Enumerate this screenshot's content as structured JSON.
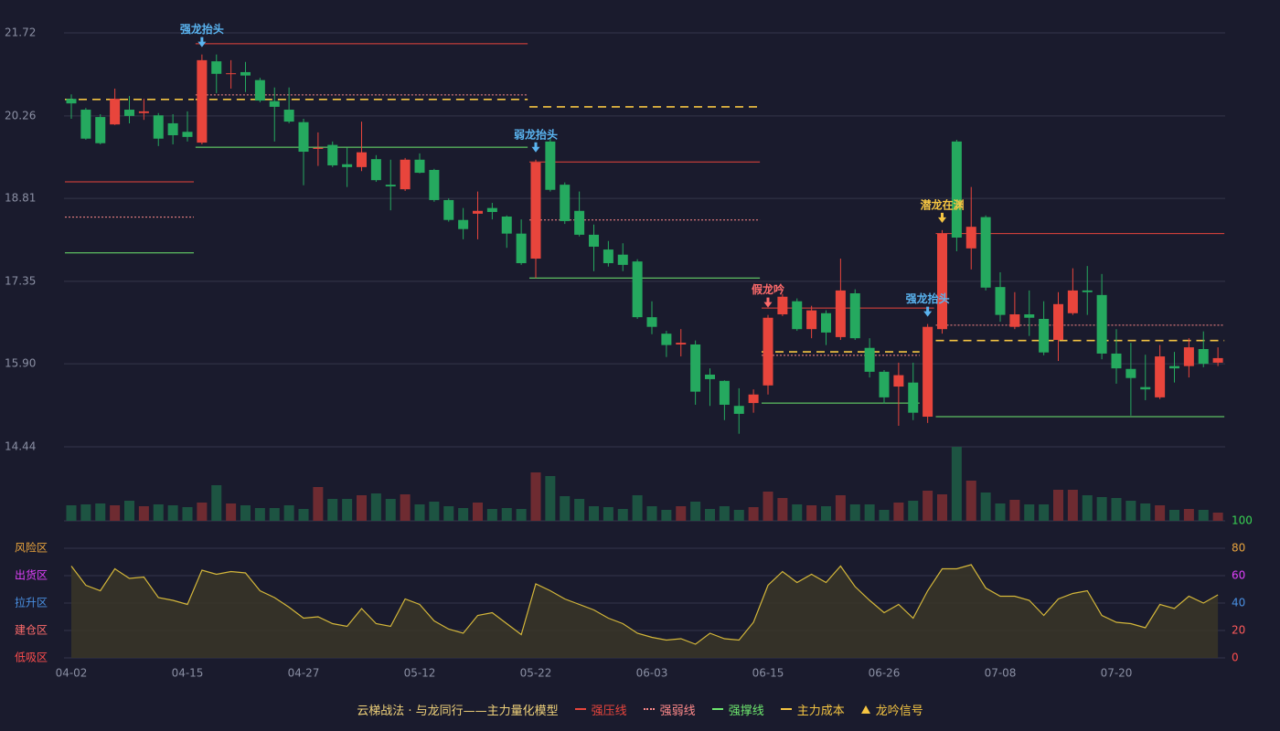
{
  "chart_data": {
    "type": "candlestick",
    "categories": [
      "04-02",
      null,
      null,
      null,
      null,
      null,
      null,
      null,
      "04-15",
      null,
      null,
      null,
      null,
      null,
      null,
      null,
      "04-27",
      null,
      null,
      null,
      null,
      null,
      null,
      null,
      "05-12",
      null,
      null,
      null,
      null,
      null,
      null,
      null,
      "05-22",
      null,
      null,
      null,
      null,
      null,
      null,
      null,
      "06-03",
      null,
      null,
      null,
      null,
      null,
      null,
      null,
      "06-15",
      null,
      null,
      null,
      null,
      null,
      null,
      null,
      "06-26",
      null,
      null,
      null,
      null,
      null,
      null,
      null,
      "07-08",
      null,
      null,
      null,
      null,
      null,
      null,
      null,
      "07-20",
      null,
      null,
      null,
      null,
      null,
      null,
      null
    ],
    "ohlc": [
      [
        20.56,
        20.64,
        20.21,
        20.48
      ],
      [
        20.37,
        20.4,
        19.84,
        19.86
      ],
      [
        20.24,
        20.29,
        19.76,
        19.78
      ],
      [
        20.11,
        20.74,
        20.1,
        20.56
      ],
      [
        20.37,
        20.61,
        20.13,
        20.26
      ],
      [
        20.31,
        20.56,
        20.19,
        20.34
      ],
      [
        20.27,
        20.31,
        19.73,
        19.86
      ],
      [
        20.13,
        20.29,
        19.76,
        19.92
      ],
      [
        19.98,
        20.34,
        19.81,
        19.89
      ],
      [
        19.79,
        21.34,
        19.76,
        21.24
      ],
      [
        21.22,
        21.34,
        20.66,
        21.0
      ],
      [
        21.0,
        21.24,
        20.74,
        21.01
      ],
      [
        21.03,
        21.21,
        20.68,
        20.97
      ],
      [
        20.89,
        20.93,
        20.5,
        20.53
      ],
      [
        20.52,
        20.76,
        19.81,
        20.42
      ],
      [
        20.37,
        20.76,
        20.13,
        20.16
      ],
      [
        20.15,
        20.21,
        19.04,
        19.63
      ],
      [
        19.68,
        19.97,
        19.38,
        19.7
      ],
      [
        19.75,
        19.81,
        19.36,
        19.39
      ],
      [
        19.41,
        19.7,
        19.01,
        19.36
      ],
      [
        19.36,
        20.16,
        19.29,
        19.62
      ],
      [
        19.5,
        19.57,
        19.1,
        19.13
      ],
      [
        19.05,
        19.49,
        18.6,
        19.02
      ],
      [
        18.97,
        19.52,
        18.94,
        19.49
      ],
      [
        19.49,
        19.6,
        19.25,
        19.26
      ],
      [
        19.31,
        19.33,
        18.75,
        18.78
      ],
      [
        18.78,
        18.81,
        18.4,
        18.43
      ],
      [
        18.43,
        18.64,
        18.09,
        18.27
      ],
      [
        18.54,
        18.93,
        18.09,
        18.59
      ],
      [
        18.64,
        18.73,
        18.44,
        18.57
      ],
      [
        18.49,
        18.51,
        17.94,
        18.19
      ],
      [
        18.19,
        18.44,
        17.64,
        17.67
      ],
      [
        17.75,
        19.49,
        17.41,
        19.44
      ],
      [
        19.81,
        19.89,
        18.93,
        18.96
      ],
      [
        19.05,
        19.09,
        18.36,
        18.41
      ],
      [
        18.59,
        18.93,
        18.14,
        18.17
      ],
      [
        18.17,
        18.35,
        17.53,
        17.96
      ],
      [
        17.91,
        18.06,
        17.61,
        17.67
      ],
      [
        17.82,
        18.02,
        17.53,
        17.64
      ],
      [
        17.7,
        17.74,
        16.69,
        16.72
      ],
      [
        16.72,
        17.0,
        16.42,
        16.55
      ],
      [
        16.43,
        16.48,
        16.02,
        16.23
      ],
      [
        16.24,
        16.51,
        16.03,
        16.27
      ],
      [
        16.24,
        16.31,
        15.18,
        15.41
      ],
      [
        15.71,
        15.82,
        15.16,
        15.63
      ],
      [
        15.6,
        15.61,
        14.91,
        15.18
      ],
      [
        15.16,
        15.47,
        14.67,
        15.02
      ],
      [
        15.21,
        15.45,
        15.04,
        15.36
      ],
      [
        15.52,
        16.76,
        15.36,
        16.71
      ],
      [
        16.77,
        17.13,
        16.74,
        17.08
      ],
      [
        17.0,
        17.05,
        16.48,
        16.51
      ],
      [
        16.51,
        16.92,
        16.35,
        16.84
      ],
      [
        16.79,
        16.84,
        16.23,
        16.45
      ],
      [
        16.37,
        17.75,
        16.32,
        17.19
      ],
      [
        17.14,
        17.21,
        16.32,
        16.35
      ],
      [
        16.18,
        16.35,
        15.66,
        15.76
      ],
      [
        15.76,
        15.79,
        15.2,
        15.31
      ],
      [
        15.5,
        15.92,
        14.81,
        15.7
      ],
      [
        15.57,
        15.92,
        14.91,
        15.04
      ],
      [
        14.97,
        16.6,
        14.86,
        16.55
      ],
      [
        16.51,
        18.25,
        16.43,
        18.19
      ],
      [
        19.81,
        19.84,
        17.88,
        18.12
      ],
      [
        17.93,
        19.01,
        17.56,
        18.31
      ],
      [
        18.48,
        18.51,
        17.19,
        17.24
      ],
      [
        17.25,
        17.51,
        16.64,
        16.76
      ],
      [
        16.55,
        17.16,
        16.51,
        16.77
      ],
      [
        16.77,
        17.19,
        16.39,
        16.71
      ],
      [
        16.69,
        17.0,
        16.05,
        16.1
      ],
      [
        16.32,
        17.16,
        15.95,
        16.95
      ],
      [
        16.79,
        17.58,
        16.76,
        17.19
      ],
      [
        17.19,
        17.62,
        16.76,
        17.16
      ],
      [
        17.11,
        17.48,
        15.98,
        16.08
      ],
      [
        16.08,
        16.51,
        15.55,
        15.82
      ],
      [
        15.81,
        16.27,
        14.99,
        15.65
      ],
      [
        15.49,
        16.06,
        15.26,
        15.45
      ],
      [
        15.31,
        16.23,
        15.28,
        16.03
      ],
      [
        15.86,
        16.11,
        15.57,
        15.82
      ],
      [
        15.86,
        16.35,
        15.66,
        16.19
      ],
      [
        16.16,
        16.47,
        15.84,
        15.9
      ],
      [
        15.92,
        16.19,
        15.86,
        16.0
      ]
    ],
    "up_color": "#e8453c",
    "down_color": "#25a95f",
    "ylim": [
      14.44,
      21.72
    ],
    "yticks": [
      14.44,
      {
        "value": 15.9,
        "label": "15.90"
      },
      17.35,
      18.81,
      20.26,
      21.72
    ],
    "grid": true,
    "levels": [
      {
        "name": "强压线",
        "color": "#e8453c",
        "style": "solid"
      },
      {
        "name": "强弱线",
        "color": "#ff8a8a",
        "style": "dotted"
      },
      {
        "name": "强撑线",
        "color": "#6ee86e",
        "style": "solid"
      },
      {
        "name": "主力成本",
        "color": "#f5c542",
        "style": "dashed"
      }
    ],
    "segments": [
      {
        "kind": 0,
        "from": 0,
        "to": 8,
        "value": 19.1
      },
      {
        "kind": 1,
        "from": 0,
        "to": 8,
        "value": 18.48
      },
      {
        "kind": 2,
        "from": 0,
        "to": 8,
        "value": 17.85
      },
      {
        "kind": 3,
        "from": 0,
        "to": 8,
        "value": 20.55
      },
      {
        "kind": 0,
        "from": 9,
        "to": 31,
        "value": 21.53
      },
      {
        "kind": 1,
        "from": 9,
        "to": 31,
        "value": 20.63
      },
      {
        "kind": 3,
        "from": 9,
        "to": 31,
        "value": 20.55
      },
      {
        "kind": 2,
        "from": 9,
        "to": 31,
        "value": 19.71
      },
      {
        "kind": 0,
        "from": 32,
        "to": 47,
        "value": 19.45
      },
      {
        "kind": 1,
        "from": 32,
        "to": 47,
        "value": 18.43
      },
      {
        "kind": 2,
        "from": 32,
        "to": 47,
        "value": 17.41
      },
      {
        "kind": 3,
        "from": 32,
        "to": 47,
        "value": 20.42
      },
      {
        "kind": 0,
        "from": 48,
        "to": 59,
        "value": 16.88
      },
      {
        "kind": 1,
        "from": 48,
        "to": 58,
        "value": 16.05
      },
      {
        "kind": 3,
        "from": 48,
        "to": 58,
        "value": 16.11
      },
      {
        "kind": 2,
        "from": 48,
        "to": 58,
        "value": 15.21
      },
      {
        "kind": 0,
        "from": 60,
        "to": 79,
        "value": 18.19
      },
      {
        "kind": 1,
        "from": 60,
        "to": 79,
        "value": 16.58
      },
      {
        "kind": 3,
        "from": 60,
        "to": 79,
        "value": 16.31
      },
      {
        "kind": 2,
        "from": 60,
        "to": 79,
        "value": 14.97
      }
    ],
    "signals": [
      {
        "label": "强龙抬头",
        "index": 9,
        "color": "#5ab4f0"
      },
      {
        "label": "弱龙抬头",
        "index": 32,
        "color": "#5ab4f0"
      },
      {
        "label": "假龙吟",
        "index": 48,
        "color": "#ff6b6b"
      },
      {
        "label": "强龙抬头",
        "index": 59,
        "color": "#5ab4f0"
      },
      {
        "label": "潜龙在渊",
        "index": 60,
        "color": "#f5c542"
      }
    ],
    "volume": [
      17,
      18,
      19,
      17,
      22,
      16,
      18,
      17,
      15,
      20,
      39,
      19,
      17,
      14,
      14,
      17,
      13,
      37,
      24,
      24,
      28,
      30,
      24,
      29,
      18,
      21,
      16,
      14,
      20,
      13,
      14,
      13,
      53,
      49,
      27,
      24,
      16,
      15,
      13,
      28,
      16,
      12,
      16,
      21,
      13,
      16,
      12,
      15,
      32,
      25,
      18,
      17,
      16,
      28,
      18,
      18,
      12,
      20,
      22,
      33,
      29,
      81,
      44,
      31,
      19,
      23,
      18,
      18,
      34,
      34,
      28,
      26,
      25,
      22,
      19,
      17,
      12,
      13,
      12,
      9
    ],
    "volume_up_color": "#6e2b31",
    "volume_down_color": "#1d5442",
    "indicator": {
      "values": [
        67,
        53,
        49,
        65,
        58,
        59,
        44,
        42,
        39,
        64,
        61,
        63,
        62,
        49,
        44,
        37,
        29,
        30,
        25,
        23,
        36,
        25,
        23,
        43,
        39,
        27,
        21,
        18,
        31,
        33,
        25,
        17,
        54,
        49,
        43,
        39,
        35,
        29,
        25,
        18,
        15,
        13,
        14,
        10,
        18,
        14,
        13,
        26,
        53,
        63,
        55,
        61,
        55,
        67,
        52,
        42,
        33,
        39,
        29,
        49,
        65,
        65,
        68,
        51,
        45,
        45,
        42,
        31,
        43,
        47,
        49,
        31,
        26,
        25,
        22,
        39,
        36,
        45,
        40,
        46
      ],
      "color": "#d4b73a",
      "ylim": [
        0,
        100
      ],
      "yticks": [
        0,
        20,
        40,
        60,
        80,
        100
      ],
      "ytick_colors": [
        "#ff4d4d",
        "#ff5a5a",
        "#4a90e2",
        "#e040fb",
        "#e8a33d",
        "#39d353"
      ],
      "zones": [
        {
          "label": "风险区",
          "value": 80,
          "color": "#e8a33d"
        },
        {
          "label": "出货区",
          "value": 60,
          "color": "#e040fb"
        },
        {
          "label": "拉升区",
          "value": 40,
          "color": "#4a90e2"
        },
        {
          "label": "建仓区",
          "value": 20,
          "color": "#ff6b6b"
        },
        {
          "label": "低吸区",
          "value": 0,
          "color": "#ff4d4d"
        }
      ]
    },
    "legend_title": "云梯战法 · 与龙同行——主力量化模型",
    "signal_legend": {
      "name": "龙吟信号",
      "color": "#f5c542"
    }
  }
}
